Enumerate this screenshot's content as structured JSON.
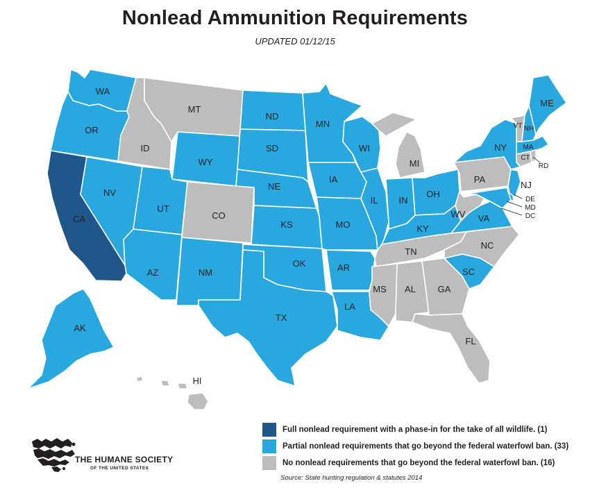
{
  "title": "Nonlead Ammunition Requirements",
  "subtitle": "UPDATED 01/12/15",
  "colors": {
    "full": "#21568a",
    "partial": "#29a8e0",
    "none": "#bdbdbd"
  },
  "legend": [
    {
      "category": "full",
      "text": "Full nonlead requirement with a phase-in for the take of all wildlife. (1)"
    },
    {
      "category": "partial",
      "text": "Partial nonlead requirements that go beyond the federal waterfowl ban. (33)"
    },
    {
      "category": "none",
      "text": "No nonlead requirements that go beyond the federal waterfowl ban. (16)"
    }
  ],
  "source": "Source: State hunting regulation & statutes 2014",
  "organization": {
    "name": "THE HUMANE SOCIETY",
    "subname": "OF THE UNITED STATES",
    "logo_icon": "animal-silhouettes-usa-map-icon"
  },
  "states": {
    "WA": "partial",
    "OR": "partial",
    "CA": "full",
    "ID": "none",
    "NV": "partial",
    "MT": "none",
    "WY": "partial",
    "UT": "partial",
    "AZ": "partial",
    "CO": "none",
    "NM": "partial",
    "ND": "partial",
    "SD": "partial",
    "NE": "partial",
    "KS": "partial",
    "OK": "partial",
    "TX": "partial",
    "MN": "partial",
    "IA": "partial",
    "MO": "partial",
    "AR": "partial",
    "LA": "partial",
    "WI": "partial",
    "IL": "partial",
    "MI": "none",
    "IN": "partial",
    "OH": "partial",
    "KY": "partial",
    "TN": "none",
    "MS": "none",
    "AL": "none",
    "GA": "none",
    "FL": "none",
    "SC": "partial",
    "NC": "none",
    "VA": "partial",
    "WV": "none",
    "MD": "partial",
    "DE": "partial",
    "PA": "none",
    "NJ": "partial",
    "NY": "partial",
    "CT": "none",
    "RI": "none",
    "MA": "partial",
    "VT": "none",
    "NH": "partial",
    "ME": "partial",
    "AK": "partial",
    "HI": "none"
  },
  "state_labels": {
    "WA": "WA",
    "OR": "OR",
    "CA": "CA",
    "ID": "ID",
    "NV": "NV",
    "MT": "MT",
    "WY": "WY",
    "UT": "UT",
    "AZ": "AZ",
    "CO": "CO",
    "NM": "NM",
    "ND": "ND",
    "SD": "SD",
    "NE": "NE",
    "KS": "KS",
    "OK": "OK",
    "TX": "TX",
    "MN": "MN",
    "IA": "IA",
    "MO": "MO",
    "AR": "AR",
    "LA": "LA",
    "WI": "WI",
    "IL": "IL",
    "MI": "MI",
    "IN": "IN",
    "OH": "OH",
    "KY": "KY",
    "TN": "TN",
    "MS": "MS",
    "AL": "AL",
    "GA": "GA",
    "FL": "FL",
    "SC": "SC",
    "NC": "NC",
    "VA": "VA",
    "WV": "WV",
    "MD": "MD",
    "DE": "DE",
    "DC": "DC",
    "PA": "PA",
    "NJ": "NJ",
    "NY": "NY",
    "CT": "CT",
    "RI": "RD",
    "MA": "MA",
    "VT": "VT",
    "NH": "NH",
    "ME": "ME",
    "AK": "AK",
    "HI": "HI"
  }
}
